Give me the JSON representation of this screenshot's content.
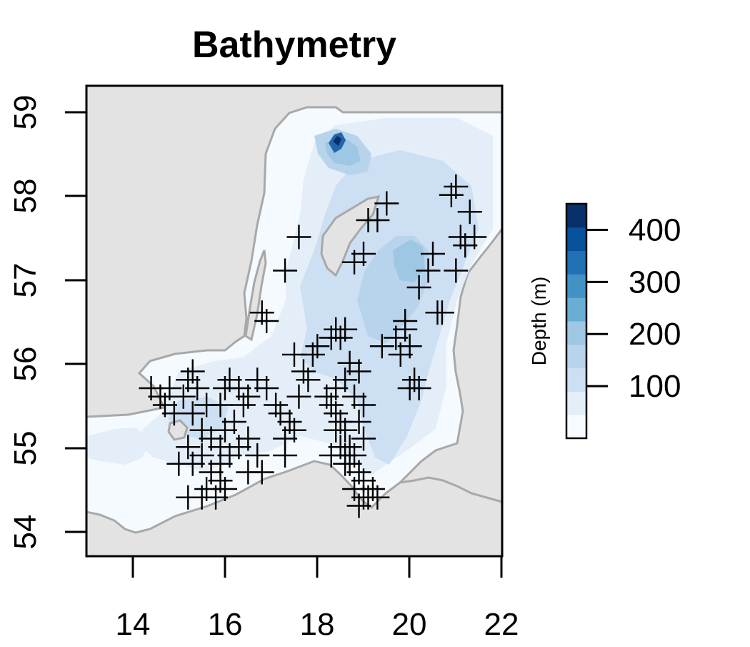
{
  "title": "Bathymetry",
  "map": {
    "xlim": [
      13,
      22
    ],
    "ylim": [
      53.7,
      59.3
    ],
    "x_ticks": [
      "14",
      "16",
      "18",
      "20",
      "22"
    ],
    "y_ticks": [
      "54",
      "55",
      "56",
      "57",
      "58",
      "59"
    ],
    "land_color": "#e3e3e3",
    "coast_color": "#a8a8a8",
    "water_levels": [
      "#f5faff",
      "#e4eef9",
      "#cddff2",
      "#b8d4ec",
      "#9ec7e3",
      "#6aa9d7",
      "#3f8ac5",
      "#2166ac",
      "#0a4b97",
      "#08306b"
    ]
  },
  "colorbar": {
    "title": "Depth (m)",
    "ticks": [
      "100",
      "200",
      "300",
      "400"
    ],
    "tick_values": [
      100,
      200,
      300,
      400
    ],
    "range": [
      0,
      450
    ],
    "colors": [
      "#f7fbff",
      "#e4eef9",
      "#cddff2",
      "#b8d4ec",
      "#9ec7e3",
      "#6aaed6",
      "#4292c6",
      "#2171b5",
      "#08519c",
      "#08306b"
    ]
  },
  "stations": [
    [
      14.4,
      55.7
    ],
    [
      14.6,
      55.6
    ],
    [
      14.7,
      55.5
    ],
    [
      14.9,
      55.4
    ],
    [
      14.8,
      55.7
    ],
    [
      15.1,
      55.6
    ],
    [
      15.2,
      55.8
    ],
    [
      15.3,
      55.9
    ],
    [
      15.4,
      55.7
    ],
    [
      15.6,
      55.5
    ],
    [
      15.3,
      55.4
    ],
    [
      15.5,
      55.2
    ],
    [
      15.7,
      55.1
    ],
    [
      15.9,
      55.0
    ],
    [
      15.2,
      55.0
    ],
    [
      15.0,
      54.8
    ],
    [
      15.3,
      54.8
    ],
    [
      15.5,
      54.9
    ],
    [
      15.7,
      54.7
    ],
    [
      15.9,
      54.8
    ],
    [
      16.1,
      54.9
    ],
    [
      15.6,
      54.5
    ],
    [
      15.8,
      54.4
    ],
    [
      16.0,
      54.5
    ],
    [
      15.2,
      54.4
    ],
    [
      15.5,
      54.4
    ],
    [
      15.9,
      54.6
    ],
    [
      16.1,
      55.8
    ],
    [
      16.3,
      55.7
    ],
    [
      16.5,
      55.6
    ],
    [
      16.7,
      55.8
    ],
    [
      16.9,
      55.7
    ],
    [
      16.4,
      55.5
    ],
    [
      16.2,
      55.3
    ],
    [
      16.0,
      55.2
    ],
    [
      16.3,
      55.0
    ],
    [
      16.5,
      55.1
    ],
    [
      16.7,
      54.9
    ],
    [
      16.8,
      54.7
    ],
    [
      16.5,
      54.7
    ],
    [
      16.0,
      55.7
    ],
    [
      15.9,
      55.5
    ],
    [
      17.2,
      55.4
    ],
    [
      17.4,
      55.3
    ],
    [
      17.3,
      55.1
    ],
    [
      17.5,
      55.2
    ],
    [
      17.3,
      54.9
    ],
    [
      17.1,
      55.5
    ],
    [
      17.6,
      55.6
    ],
    [
      17.8,
      55.8
    ],
    [
      17.7,
      55.9
    ],
    [
      17.9,
      56.1
    ],
    [
      18.0,
      56.2
    ],
    [
      17.5,
      56.1
    ],
    [
      18.2,
      55.6
    ],
    [
      18.3,
      55.5
    ],
    [
      18.4,
      55.4
    ],
    [
      18.5,
      55.3
    ],
    [
      18.6,
      55.2
    ],
    [
      18.7,
      55.0
    ],
    [
      18.8,
      54.9
    ],
    [
      18.6,
      54.8
    ],
    [
      18.5,
      55.0
    ],
    [
      18.7,
      54.8
    ],
    [
      18.9,
      54.7
    ],
    [
      18.8,
      54.5
    ],
    [
      19.0,
      54.6
    ],
    [
      19.1,
      54.4
    ],
    [
      19.2,
      54.5
    ],
    [
      19.3,
      54.4
    ],
    [
      18.9,
      54.3
    ],
    [
      19.0,
      54.4
    ],
    [
      18.3,
      54.9
    ],
    [
      18.6,
      54.9
    ],
    [
      18.4,
      55.7
    ],
    [
      18.6,
      55.8
    ],
    [
      18.8,
      55.6
    ],
    [
      19.0,
      55.5
    ],
    [
      18.9,
      55.3
    ],
    [
      18.7,
      56.0
    ],
    [
      18.9,
      55.9
    ],
    [
      18.3,
      56.3
    ],
    [
      18.4,
      56.4
    ],
    [
      18.5,
      56.3
    ],
    [
      18.6,
      56.4
    ],
    [
      19.4,
      56.2
    ],
    [
      19.7,
      56.3
    ],
    [
      19.9,
      56.5
    ],
    [
      20.0,
      56.2
    ],
    [
      19.8,
      56.1
    ],
    [
      19.9,
      56.4
    ],
    [
      20.1,
      55.8
    ],
    [
      20.2,
      55.7
    ],
    [
      20.0,
      55.7
    ],
    [
      16.9,
      56.5
    ],
    [
      16.8,
      56.6
    ],
    [
      17.3,
      57.1
    ],
    [
      17.6,
      57.5
    ],
    [
      18.8,
      57.2
    ],
    [
      19.0,
      57.3
    ],
    [
      19.1,
      57.7
    ],
    [
      19.3,
      57.7
    ],
    [
      19.5,
      57.9
    ],
    [
      20.5,
      57.3
    ],
    [
      20.4,
      57.1
    ],
    [
      20.2,
      56.9
    ],
    [
      20.6,
      56.6
    ],
    [
      20.7,
      56.6
    ],
    [
      21.0,
      57.1
    ],
    [
      20.9,
      58.0
    ],
    [
      21.0,
      58.1
    ],
    [
      21.3,
      57.8
    ],
    [
      21.1,
      57.5
    ],
    [
      21.2,
      57.4
    ],
    [
      21.4,
      57.5
    ],
    [
      19.0,
      55.1
    ],
    [
      18.4,
      55.2
    ]
  ]
}
